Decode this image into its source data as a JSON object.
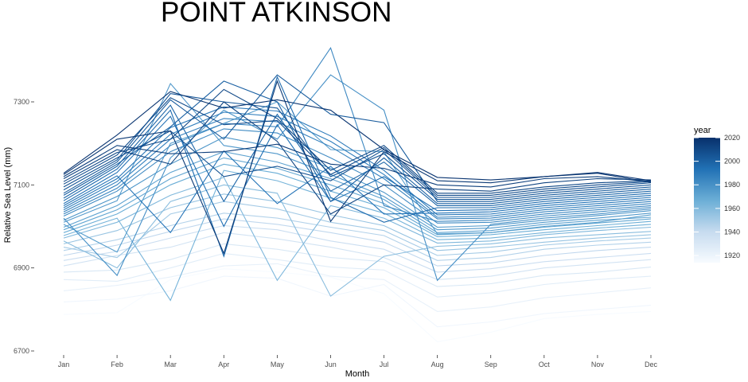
{
  "chart_data": {
    "type": "line",
    "title": "POINT ATKINSON",
    "xlabel": "Month",
    "ylabel": "Relative Sea Level (mm)",
    "categories": [
      "Jan",
      "Feb",
      "Mar",
      "Apr",
      "May",
      "Jun",
      "Jul",
      "Aug",
      "Sep",
      "Oct",
      "Nov",
      "Dec"
    ],
    "ylim": [
      6700,
      7440
    ],
    "yticks": [
      6700,
      6900,
      7100,
      7300
    ],
    "grid": false,
    "legend": {
      "title": "year",
      "placement": "right",
      "min": 1914,
      "max": 2020,
      "ticks": [
        1920,
        1940,
        1960,
        1980,
        2000,
        2020
      ],
      "colors": [
        "#f7fbff",
        "#c6dbef",
        "#6baed6",
        "#2171b5",
        "#08306b"
      ]
    },
    "series_note_not_rendered": "",
    "series": [
      {
        "year": 1914,
        "values": [
          6788,
          6792,
          6872,
          6898,
          6890,
          6878,
          6838,
          6722,
          6745,
          6778,
          6788,
          6795
        ]
      },
      {
        "year": 1918,
        "values": [
          6818,
          6825,
          6845,
          6880,
          6875,
          6832,
          6860,
          6758,
          6770,
          6790,
          6800,
          6810
        ]
      },
      {
        "year": 1922,
        "values": [
          6845,
          6858,
          6878,
          6905,
          6910,
          6880,
          6872,
          6795,
          6806,
          6828,
          6840,
          6852
        ]
      },
      {
        "year": 1926,
        "values": [
          6872,
          6868,
          6900,
          6935,
          6920,
          6902,
          6895,
          6830,
          6840,
          6860,
          6872,
          6880
        ]
      },
      {
        "year": 1930,
        "values": [
          6890,
          6895,
          6920,
          6958,
          6945,
          6925,
          6915,
          6855,
          6862,
          6882,
          6890,
          6902
        ]
      },
      {
        "year": 1934,
        "values": [
          6905,
          6930,
          6950,
          6985,
          6970,
          6950,
          6925,
          6872,
          6880,
          6900,
          6910,
          6920
        ]
      },
      {
        "year": 1938,
        "values": [
          6918,
          6940,
          6972,
          7002,
          6992,
          6965,
          6945,
          6890,
          6898,
          6915,
          6925,
          6935
        ]
      },
      {
        "year": 1942,
        "values": [
          6930,
          6955,
          6988,
          7018,
          7005,
          6985,
          6962,
          6905,
          6912,
          6930,
          6942,
          6950
        ]
      },
      {
        "year": 1946,
        "values": [
          6942,
          6968,
          7002,
          7032,
          7020,
          6998,
          6978,
          6918,
          6925,
          6945,
          6955,
          6962
        ]
      },
      {
        "year": 1950,
        "values": [
          6950,
          6925,
          7030,
          7060,
          7042,
          7010,
          6990,
          6930,
          6938,
          6955,
          6965,
          6972
        ]
      },
      {
        "year": 1954,
        "values": [
          6958,
          6990,
          7045,
          7078,
          7060,
          7028,
          7002,
          6942,
          6950,
          6962,
          6972,
          6980
        ]
      },
      {
        "year": 1958,
        "values": [
          6965,
          6900,
          7060,
          7100,
          7080,
          6832,
          6928,
          6952,
          6958,
          6972,
          6980,
          6988
        ]
      },
      {
        "year": 1961,
        "values": [
          6972,
          7010,
          7075,
          7118,
          6870,
          7050,
          7020,
          6960,
          6965,
          6980,
          6990,
          6998
        ]
      },
      {
        "year": 1964,
        "values": [
          6978,
          7020,
          6822,
          7135,
          7110,
          7068,
          7032,
          6968,
          6972,
          6985,
          6996,
          7005
        ]
      },
      {
        "year": 1967,
        "values": [
          6985,
          7030,
          7100,
          7150,
          7128,
          7085,
          7045,
          6975,
          6980,
          6992,
          7002,
          7012
        ]
      },
      {
        "year": 1970,
        "values": [
          6992,
          7040,
          7115,
          7165,
          7140,
          7100,
          7055,
          6980,
          6985,
          6998,
          7008,
          7018
        ]
      },
      {
        "year": 1972,
        "values": [
          6998,
          7050,
          7130,
          7180,
          7155,
          7115,
          7065,
          6985,
          6990,
          7005,
          7015,
          7022
        ]
      },
      {
        "year": 1974,
        "values": [
          7005,
          6938,
          7200,
          7248,
          7300,
          7185,
          7180,
          6982,
          6985,
          7000,
          7010,
          7028
        ]
      },
      {
        "year": 1976,
        "values": [
          7010,
          7062,
          7344,
          7195,
          7175,
          7125,
          7072,
          6992,
          6996,
          7010,
          7020,
          7032
        ]
      },
      {
        "year": 1978,
        "values": [
          7015,
          7072,
          7150,
          7215,
          7190,
          7140,
          7082,
          6998,
          7002,
          7015,
          7026,
          7038
        ]
      },
      {
        "year": 1980,
        "values": [
          7020,
          6882,
          7165,
          7280,
          7210,
          7365,
          7280,
          6870,
          7005,
          7020,
          7030,
          7042
        ]
      },
      {
        "year": 1982,
        "values": [
          7025,
          7085,
          7180,
          7235,
          7225,
          7165,
          7100,
          7008,
          7010,
          7025,
          7035,
          7046
        ]
      },
      {
        "year": 1984,
        "values": [
          7030,
          7092,
          7195,
          7248,
          7240,
          7430,
          7050,
          7012,
          7015,
          7030,
          7040,
          7050
        ]
      },
      {
        "year": 1986,
        "values": [
          7035,
          7100,
          7210,
          7260,
          7252,
          7192,
          7115,
          7018,
          7020,
          7035,
          7045,
          7055
        ]
      },
      {
        "year": 1988,
        "values": [
          7040,
          7108,
          7222,
          7275,
          7265,
          7205,
          7125,
          7022,
          7025,
          7040,
          7050,
          7060
        ]
      },
      {
        "year": 1990,
        "values": [
          7045,
          7115,
          7238,
          7288,
          7278,
          7218,
          7135,
          7028,
          7030,
          7045,
          7055,
          7065
        ]
      },
      {
        "year": 1992,
        "values": [
          7050,
          7122,
          6985,
          7182,
          7055,
          7145,
          7030,
          7032,
          7035,
          7050,
          7060,
          7070
        ]
      },
      {
        "year": 1994,
        "values": [
          7055,
          7130,
          7265,
          7000,
          7245,
          7060,
          7120,
          7038,
          7040,
          7055,
          7065,
          7075
        ]
      },
      {
        "year": 1996,
        "values": [
          7062,
          7138,
          7280,
          6928,
          7360,
          7070,
          7010,
          7045,
          7045,
          7060,
          7070,
          7080
        ]
      },
      {
        "year": 1998,
        "values": [
          7068,
          7145,
          7292,
          7060,
          7270,
          7085,
          7155,
          7050,
          7050,
          7065,
          7075,
          7085
        ]
      },
      {
        "year": 2000,
        "values": [
          7075,
          7150,
          7240,
          7350,
          7300,
          7060,
          7165,
          7055,
          7055,
          7070,
          7080,
          7090
        ]
      },
      {
        "year": 2002,
        "values": [
          7080,
          7155,
          7305,
          7210,
          7365,
          7270,
          7250,
          7060,
          7060,
          7075,
          7085,
          7095
        ]
      },
      {
        "year": 2004,
        "values": [
          7088,
          7160,
          7320,
          7300,
          7285,
          7120,
          7175,
          7065,
          7065,
          7080,
          7090,
          7100
        ]
      },
      {
        "year": 2006,
        "values": [
          7095,
          7165,
          7230,
          7120,
          7145,
          7110,
          7185,
          7070,
          7070,
          7085,
          7095,
          7105
        ]
      },
      {
        "year": 2008,
        "values": [
          7102,
          7172,
          7310,
          7245,
          7255,
          7125,
          7190,
          7075,
          7075,
          7090,
          7100,
          7108
        ]
      },
      {
        "year": 2010,
        "values": [
          7108,
          7178,
          7210,
          7330,
          7260,
          7135,
          7195,
          7080,
          7080,
          7095,
          7105,
          7110
        ]
      },
      {
        "year": 2012,
        "values": [
          7115,
          7185,
          7150,
          7300,
          7205,
          7030,
          7100,
          7090,
          7085,
          7105,
          7115,
          7112
        ]
      },
      {
        "year": 2014,
        "values": [
          7120,
          7195,
          7175,
          7180,
          7198,
          7150,
          7140,
          7100,
          7095,
          7115,
          7120,
          7108
        ]
      },
      {
        "year": 2016,
        "values": [
          7125,
          7210,
          7230,
          6935,
          7350,
          7012,
          7180,
          7110,
          7105,
          7120,
          7128,
          7106
        ]
      },
      {
        "year": 2018,
        "values": [
          7128,
          7220,
          7325,
          7285,
          7305,
          7280,
          7185,
          7118,
          7112,
          7120,
          7130,
          7110
        ]
      }
    ]
  }
}
